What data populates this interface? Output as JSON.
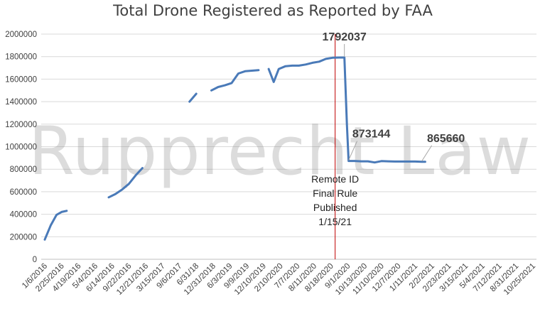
{
  "chart_data": {
    "type": "line",
    "title": "Total Drone Registered as Reported by FAA",
    "watermark": "Rupprecht Law",
    "ylim": [
      0,
      2000000
    ],
    "yticks": [
      0,
      200000,
      400000,
      600000,
      800000,
      1000000,
      1200000,
      1400000,
      1600000,
      1800000,
      2000000
    ],
    "ytick_labels": [
      "0",
      "200000",
      "400000",
      "600000",
      "800000",
      "1000000",
      "1200000",
      "1400000",
      "1600000",
      "1800000",
      "2000000"
    ],
    "categories": [
      "1/6/2016",
      "2/25/2016",
      "4/19/2016",
      "5/4/2016",
      "6/14/2016",
      "9/22/2016",
      "12/21/2016",
      "3/15/2017",
      "9/6/2017",
      "6/31/18",
      "12/31/2018",
      "6/3/2019",
      "9/9/2019",
      "12/10/2019",
      "2/10/2020",
      "7/7/2020",
      "8/11/2020",
      "8/18/2020",
      "9/1/2020",
      "10/13/2020",
      "11/10/2020",
      "12/7/2020",
      "1/11/2021",
      "2/2/2021",
      "2/23/2021",
      "3/15/2021",
      "5/4/2021",
      "7/12/2021",
      "8/31/2021",
      "10/25/2021"
    ],
    "series": [
      {
        "color": "#4a7ab8",
        "segments": [
          {
            "x": [
              0,
              0.35,
              0.7,
              1.0,
              1.3
            ],
            "y": [
              175000,
              300000,
              395000,
              420000,
              430000
            ]
          },
          {
            "x": [
              3.8,
              4.2,
              4.6,
              5.0,
              5.4,
              5.8
            ],
            "y": [
              550000,
              580000,
              620000,
              670000,
              745000,
              810000
            ]
          },
          {
            "x": [
              8.6,
              9.0
            ],
            "y": [
              1400000,
              1470000
            ]
          },
          {
            "x": [
              9.9,
              10.3,
              10.7,
              11.1,
              11.5,
              11.9,
              12.3,
              12.7
            ],
            "y": [
              1500000,
              1530000,
              1545000,
              1565000,
              1650000,
              1670000,
              1675000,
              1680000
            ]
          },
          {
            "x": [
              13.3,
              13.6,
              13.9,
              14.3,
              14.7,
              15.1,
              15.5,
              15.9,
              16.3,
              16.7,
              17.1,
              17.5,
              17.8,
              17.95,
              18.05,
              18.4,
              18.8,
              19.2,
              19.6,
              20.0,
              20.4,
              20.8,
              21.2,
              21.6,
              22.0,
              22.4,
              22.6
            ],
            "y": [
              1690000,
              1575000,
              1690000,
              1715000,
              1720000,
              1720000,
              1730000,
              1745000,
              1755000,
              1780000,
              1790000,
              1792037,
              1792037,
              1200000,
              873144,
              873000,
              870000,
              870000,
              860000,
              872000,
              870000,
              868000,
              868000,
              868000,
              868000,
              865660,
              865660
            ]
          }
        ]
      }
    ],
    "callouts": [
      {
        "label": "1792037",
        "x": 17.8,
        "y": 1792037
      },
      {
        "label": "873144",
        "x": 18.05,
        "y": 873144
      },
      {
        "label": "865660",
        "x": 22.4,
        "y": 865660
      }
    ],
    "vertical_marker": {
      "x": 17.25,
      "lines": [
        "Remote ID",
        "Final Rule",
        "Published",
        "1/15/21"
      ]
    },
    "grid": true,
    "legend": "none"
  }
}
